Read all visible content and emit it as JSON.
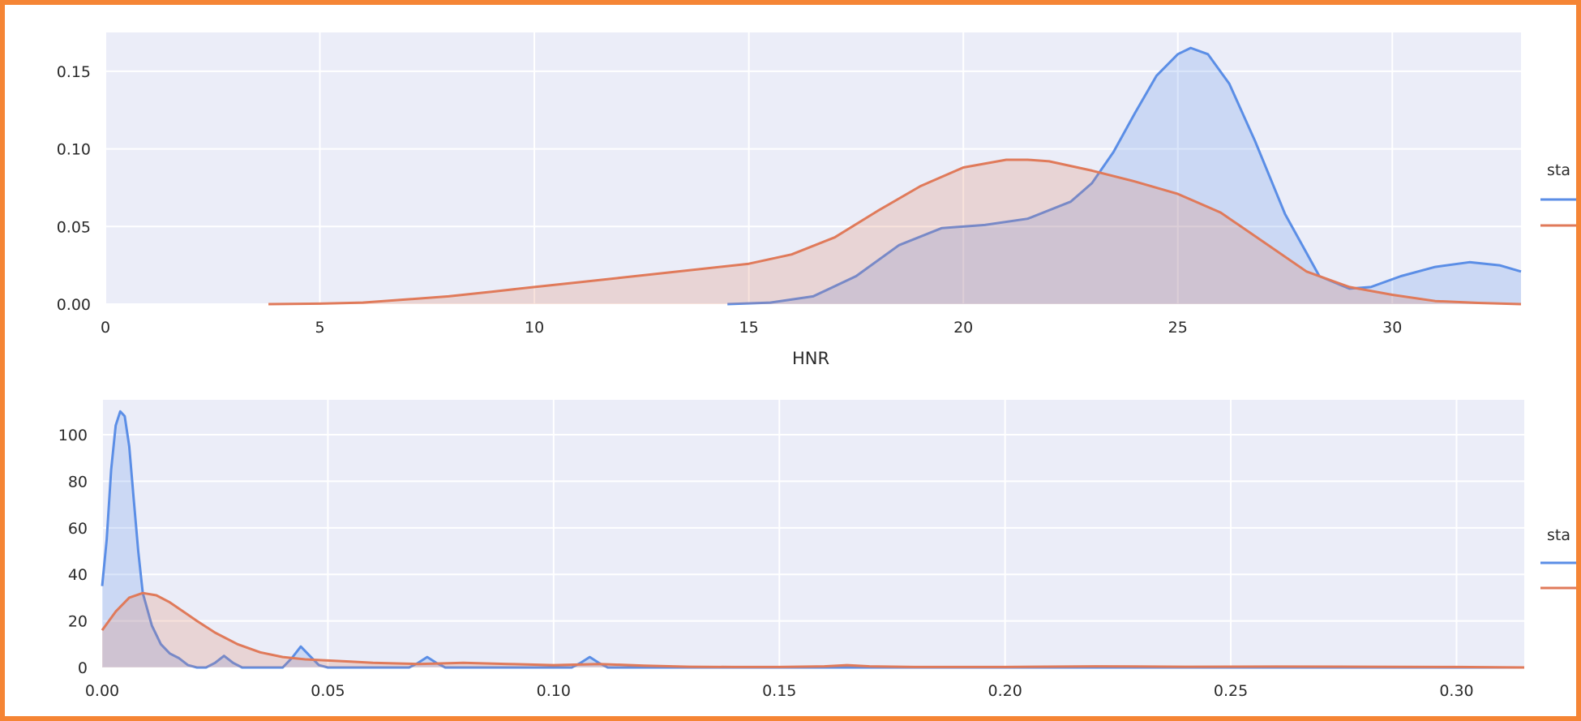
{
  "colors": {
    "frame": "#f58535",
    "plot_background": "#ebedf8",
    "grid": "#ffffff",
    "series_blue": "#5b8ee6",
    "series_orange": "#e07a5a"
  },
  "chart_data": [
    {
      "type": "area",
      "title": "",
      "xlabel": "HNR",
      "ylabel": "",
      "xlim": [
        0,
        33
      ],
      "ylim": [
        0,
        0.175
      ],
      "xticks": [
        0,
        5,
        10,
        15,
        20,
        25,
        30
      ],
      "xtick_labels": [
        "0",
        "5",
        "10",
        "15",
        "20",
        "25",
        "30"
      ],
      "yticks": [
        0,
        0.05,
        0.1,
        0.15
      ],
      "ytick_labels": [
        "0.00",
        "0.05",
        "0.10",
        "0.15"
      ],
      "grid": true,
      "legend": {
        "title": "sta",
        "placement": "right, partially cut off"
      },
      "series": [
        {
          "color": "#5b8ee6",
          "x": [
            14.5,
            15.5,
            16.5,
            17.5,
            18.5,
            19.5,
            20.5,
            21.5,
            22.5,
            23.0,
            23.5,
            24.0,
            24.5,
            25.0,
            25.3,
            25.7,
            26.2,
            26.8,
            27.5,
            28.3,
            29.0,
            29.5,
            30.2,
            31.0,
            31.8,
            32.5,
            33.0
          ],
          "y": [
            0,
            0.001,
            0.005,
            0.018,
            0.038,
            0.049,
            0.051,
            0.055,
            0.066,
            0.078,
            0.098,
            0.123,
            0.147,
            0.161,
            0.165,
            0.161,
            0.142,
            0.105,
            0.058,
            0.018,
            0.01,
            0.011,
            0.018,
            0.024,
            0.027,
            0.025,
            0.021
          ]
        },
        {
          "color": "#e07a5a",
          "x": [
            3.8,
            5,
            6,
            7,
            8,
            9,
            10,
            11,
            12,
            13,
            14,
            15,
            16,
            17,
            18,
            19,
            20,
            21,
            21.5,
            22,
            23,
            24,
            25,
            26,
            27,
            28,
            29,
            30,
            31,
            32,
            33
          ],
          "y": [
            0,
            0.0003,
            0.001,
            0.003,
            0.005,
            0.008,
            0.011,
            0.014,
            0.017,
            0.02,
            0.023,
            0.026,
            0.032,
            0.043,
            0.06,
            0.076,
            0.088,
            0.093,
            0.093,
            0.092,
            0.086,
            0.079,
            0.071,
            0.059,
            0.04,
            0.021,
            0.011,
            0.006,
            0.002,
            0.0008,
            0
          ]
        }
      ]
    },
    {
      "type": "area",
      "title": "",
      "xlabel": "",
      "ylabel": "",
      "xlim": [
        0,
        0.315
      ],
      "ylim": [
        0,
        115
      ],
      "xticks": [
        0,
        0.05,
        0.1,
        0.15,
        0.2,
        0.25,
        0.3
      ],
      "xtick_labels": [
        "0.00",
        "0.05",
        "0.10",
        "0.15",
        "0.20",
        "0.25",
        "0.30"
      ],
      "yticks": [
        0,
        20,
        40,
        60,
        80,
        100
      ],
      "ytick_labels": [
        "0",
        "20",
        "40",
        "60",
        "80",
        "100"
      ],
      "grid": true,
      "legend": {
        "title": "sta",
        "placement": "right, partially cut off"
      },
      "series": [
        {
          "color": "#5b8ee6",
          "x": [
            0,
            0.001,
            0.002,
            0.003,
            0.004,
            0.005,
            0.006,
            0.007,
            0.008,
            0.009,
            0.011,
            0.013,
            0.015,
            0.017,
            0.019,
            0.021,
            0.023,
            0.025,
            0.027,
            0.029,
            0.031,
            0.033,
            0.04,
            0.042,
            0.044,
            0.046,
            0.048,
            0.05,
            0.068,
            0.07,
            0.072,
            0.074,
            0.076,
            0.104,
            0.106,
            0.108,
            0.11,
            0.112,
            0.315
          ],
          "y": [
            35,
            55,
            85,
            104,
            110,
            108,
            95,
            72,
            50,
            32,
            18,
            10,
            6,
            4,
            1,
            0,
            0,
            2,
            5,
            2,
            0,
            0,
            0,
            4,
            9,
            5,
            1,
            0,
            0,
            2,
            4.5,
            2,
            0,
            0,
            2,
            4.5,
            2,
            0,
            0
          ]
        },
        {
          "color": "#e07a5a",
          "x": [
            0,
            0.003,
            0.006,
            0.009,
            0.012,
            0.015,
            0.018,
            0.021,
            0.025,
            0.03,
            0.035,
            0.04,
            0.045,
            0.05,
            0.055,
            0.06,
            0.07,
            0.08,
            0.09,
            0.1,
            0.11,
            0.12,
            0.13,
            0.14,
            0.15,
            0.16,
            0.165,
            0.17,
            0.18,
            0.2,
            0.22,
            0.24,
            0.26,
            0.28,
            0.3,
            0.315
          ],
          "y": [
            16,
            24,
            30,
            32,
            31,
            28,
            24,
            20,
            15,
            10,
            6.5,
            4.5,
            3.5,
            3,
            2.5,
            2,
            1.5,
            2,
            1.5,
            1,
            1.5,
            0.8,
            0.3,
            0.2,
            0.2,
            0.5,
            1,
            0.5,
            0.2,
            0.2,
            0.5,
            0.3,
            0.4,
            0.3,
            0.2,
            0
          ]
        }
      ]
    }
  ]
}
